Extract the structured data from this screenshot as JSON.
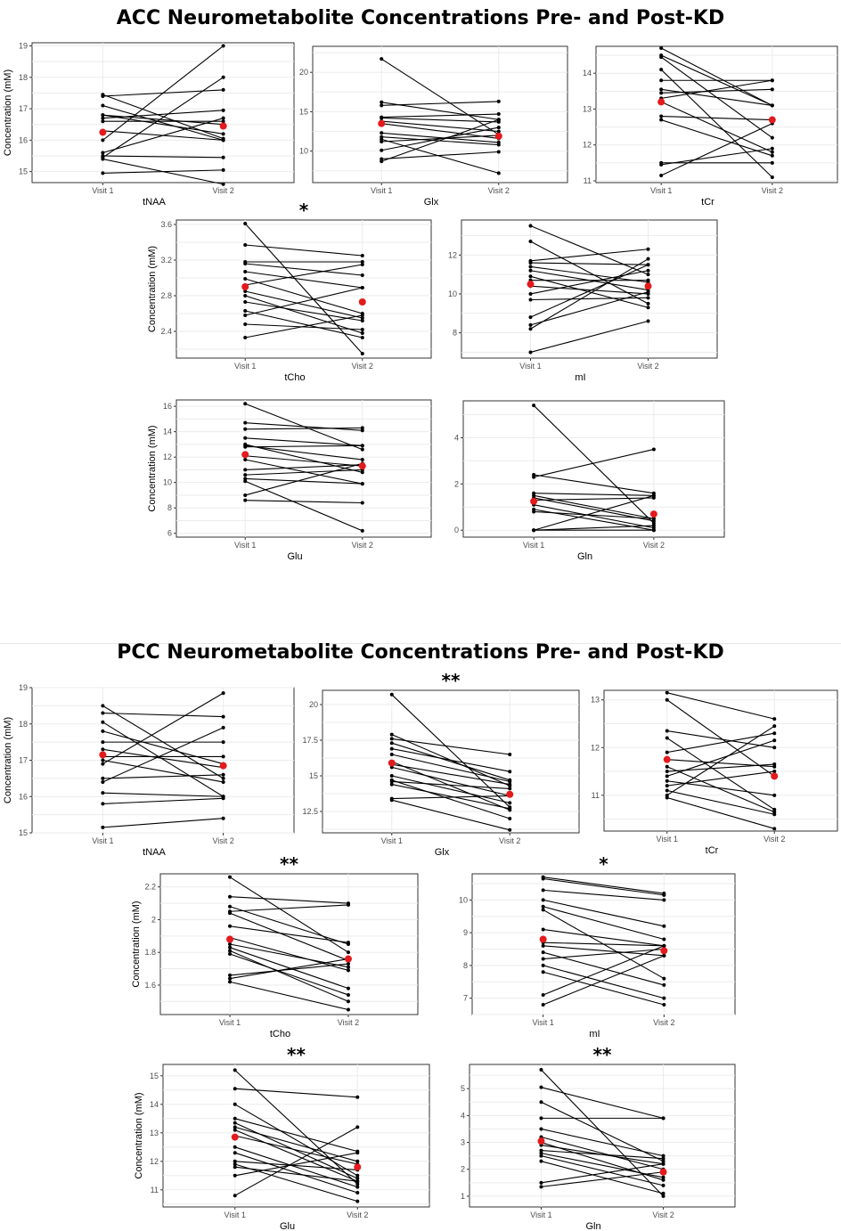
{
  "sections": [
    {
      "title": "ACC Neurometabolite Concentrations Pre- and Post-KD"
    },
    {
      "title": "PCC Neurometabolite Concentrations Pre- and Post-KD"
    }
  ],
  "colors": {
    "subject": "#000000",
    "mean": "#e41a1c",
    "grid": "#ebebeb",
    "frame": "#333333"
  },
  "chart_data": [
    {
      "type": "line",
      "region": "ACC",
      "metabolite": "tNAA",
      "xlabel": "tNAA",
      "ylabel": "Concentration (mM)",
      "significance": "",
      "categories": [
        "Visit 1",
        "Visit 2"
      ],
      "ylim": [
        14.65,
        19.1
      ],
      "yticks": [
        15,
        16,
        17,
        18,
        19
      ],
      "pairs": [
        [
          17.45,
          16.05
        ],
        [
          17.4,
          17.6
        ],
        [
          17.1,
          16.0
        ],
        [
          16.8,
          16.5
        ],
        [
          16.8,
          16.2
        ],
        [
          16.7,
          16.95
        ],
        [
          16.6,
          16.6
        ],
        [
          16.3,
          16.0
        ],
        [
          16.0,
          19.0
        ],
        [
          15.6,
          16.7
        ],
        [
          15.5,
          15.45
        ],
        [
          15.4,
          14.6
        ],
        [
          15.45,
          18.0
        ],
        [
          14.95,
          15.05
        ]
      ],
      "mean": [
        16.25,
        16.45
      ]
    },
    {
      "type": "line",
      "region": "ACC",
      "metabolite": "Glx",
      "xlabel": "Glx",
      "ylabel": "",
      "significance": "",
      "categories": [
        "Visit 1",
        "Visit 2"
      ],
      "ylim": [
        6.0,
        23.3
      ],
      "yticks": [
        10,
        15,
        20
      ],
      "pairs": [
        [
          21.7,
          12.1
        ],
        [
          16.2,
          14.0
        ],
        [
          15.8,
          16.3
        ],
        [
          14.3,
          14.7
        ],
        [
          14.2,
          13.7
        ],
        [
          13.8,
          12.5
        ],
        [
          13.5,
          11.6
        ],
        [
          12.3,
          11.1
        ],
        [
          11.8,
          10.8
        ],
        [
          11.2,
          12.0
        ],
        [
          10.1,
          13.0
        ],
        [
          9.0,
          9.9
        ],
        [
          8.7,
          14.0
        ],
        [
          11.5,
          7.2
        ]
      ],
      "mean": [
        13.5,
        11.9
      ]
    },
    {
      "type": "line",
      "region": "ACC",
      "metabolite": "tCr",
      "xlabel": "tCr",
      "ylabel": "",
      "significance": "",
      "categories": [
        "Visit 1",
        "Visit 2"
      ],
      "ylim": [
        10.95,
        14.75
      ],
      "yticks": [
        11,
        12,
        13,
        14
      ],
      "pairs": [
        [
          14.7,
          13.1
        ],
        [
          14.5,
          13.1
        ],
        [
          14.45,
          12.2
        ],
        [
          14.1,
          11.1
        ],
        [
          13.8,
          13.8
        ],
        [
          13.55,
          13.1
        ],
        [
          13.45,
          13.55
        ],
        [
          13.3,
          13.8
        ],
        [
          13.2,
          11.8
        ],
        [
          12.8,
          12.7
        ],
        [
          12.7,
          11.7
        ],
        [
          11.5,
          11.5
        ],
        [
          11.45,
          11.9
        ],
        [
          11.15,
          12.6
        ]
      ],
      "mean": [
        13.2,
        12.7
      ]
    },
    {
      "type": "line",
      "region": "ACC",
      "metabolite": "tCho",
      "xlabel": "tCho",
      "ylabel": "Concentration (mM)",
      "significance": "*",
      "categories": [
        "Visit 1",
        "Visit 2"
      ],
      "ylim": [
        2.1,
        3.65
      ],
      "yticks": [
        2.4,
        2.8,
        3.2,
        3.6
      ],
      "pairs": [
        [
          3.61,
          2.15
        ],
        [
          3.37,
          3.25
        ],
        [
          3.18,
          3.18
        ],
        [
          3.16,
          3.03
        ],
        [
          3.07,
          2.89
        ],
        [
          2.99,
          2.6
        ],
        [
          2.92,
          3.15
        ],
        [
          2.85,
          2.55
        ],
        [
          2.8,
          2.38
        ],
        [
          2.73,
          2.52
        ],
        [
          2.63,
          2.33
        ],
        [
          2.58,
          2.89
        ],
        [
          2.48,
          2.42
        ],
        [
          2.33,
          2.58
        ]
      ],
      "mean": [
        2.9,
        2.73
      ]
    },
    {
      "type": "line",
      "region": "ACC",
      "metabolite": "mI",
      "xlabel": "mI",
      "ylabel": "",
      "significance": "",
      "categories": [
        "Visit 1",
        "Visit 2"
      ],
      "ylim": [
        6.7,
        13.8
      ],
      "yticks": [
        8,
        10,
        12
      ],
      "pairs": [
        [
          13.5,
          11.0
        ],
        [
          12.7,
          9.5
        ],
        [
          11.7,
          12.3
        ],
        [
          11.6,
          11.5
        ],
        [
          11.4,
          10.6
        ],
        [
          11.2,
          10.2
        ],
        [
          10.9,
          9.3
        ],
        [
          10.7,
          10.7
        ],
        [
          10.4,
          10.0
        ],
        [
          10.0,
          11.2
        ],
        [
          9.7,
          9.8
        ],
        [
          8.8,
          11.5
        ],
        [
          8.4,
          10.1
        ],
        [
          8.2,
          11.8
        ],
        [
          7.0,
          8.6
        ]
      ],
      "mean": [
        10.5,
        10.4
      ]
    },
    {
      "type": "line",
      "region": "ACC",
      "metabolite": "Glu",
      "xlabel": "Glu",
      "ylabel": "Concentration (mM)",
      "significance": "",
      "categories": [
        "Visit 1",
        "Visit 2"
      ],
      "ylim": [
        5.7,
        16.5
      ],
      "yticks": [
        6,
        8,
        10,
        12,
        14,
        16
      ],
      "pairs": [
        [
          16.2,
          12.6
        ],
        [
          14.7,
          14.1
        ],
        [
          14.2,
          14.3
        ],
        [
          13.5,
          12.9
        ],
        [
          13.0,
          10.8
        ],
        [
          12.9,
          11.8
        ],
        [
          12.8,
          12.9
        ],
        [
          12.1,
          11.3
        ],
        [
          11.8,
          9.9
        ],
        [
          11.0,
          11.4
        ],
        [
          10.6,
          11.0
        ],
        [
          10.3,
          9.9
        ],
        [
          9.0,
          11.5
        ],
        [
          8.6,
          8.4
        ],
        [
          10.1,
          6.2
        ]
      ],
      "mean": [
        12.2,
        11.3
      ]
    },
    {
      "type": "line",
      "region": "ACC",
      "metabolite": "Gln",
      "xlabel": "Gln",
      "ylabel": "",
      "significance": "",
      "categories": [
        "Visit 1",
        "Visit 2"
      ],
      "ylim": [
        -0.3,
        5.6
      ],
      "yticks": [
        0,
        2,
        4
      ],
      "pairs": [
        [
          5.4,
          0.3
        ],
        [
          2.4,
          1.6
        ],
        [
          2.3,
          3.5
        ],
        [
          1.6,
          1.5
        ],
        [
          1.5,
          0.5
        ],
        [
          1.4,
          0.4
        ],
        [
          1.3,
          1.4
        ],
        [
          1.1,
          0.1
        ],
        [
          0.9,
          0.0
        ],
        [
          0.8,
          0.5
        ],
        [
          0.0,
          1.5
        ],
        [
          0.0,
          0.2
        ],
        [
          0.0,
          0.0
        ]
      ],
      "mean": [
        1.25,
        0.7
      ]
    },
    {
      "type": "line",
      "region": "PCC",
      "metabolite": "tNAA",
      "xlabel": "tNAA",
      "ylabel": "Concentration (mM)",
      "significance": "",
      "categories": [
        "Visit 1",
        "Visit 2"
      ],
      "ylim": [
        15.0,
        19.0
      ],
      "yticks": [
        15,
        16,
        17,
        18,
        19
      ],
      "pairs": [
        [
          18.5,
          16.5
        ],
        [
          18.3,
          18.2
        ],
        [
          18.05,
          16.0
        ],
        [
          17.8,
          16.9
        ],
        [
          17.5,
          17.5
        ],
        [
          17.3,
          16.8
        ],
        [
          17.1,
          17.1
        ],
        [
          17.0,
          16.4
        ],
        [
          16.9,
          18.85
        ],
        [
          16.5,
          16.6
        ],
        [
          16.4,
          17.9
        ],
        [
          16.1,
          16.0
        ],
        [
          15.8,
          15.95
        ],
        [
          15.15,
          15.4
        ]
      ],
      "mean": [
        17.15,
        16.85
      ]
    },
    {
      "type": "line",
      "region": "PCC",
      "metabolite": "Glx",
      "xlabel": "Glx",
      "ylabel": "",
      "significance": "**",
      "categories": [
        "Visit 1",
        "Visit 2"
      ],
      "ylim": [
        11.0,
        21.0
      ],
      "yticks": [
        12.5,
        15.0,
        17.5,
        20.0
      ],
      "pairs": [
        [
          20.7,
          12.8
        ],
        [
          17.9,
          14.3
        ],
        [
          17.6,
          16.5
        ],
        [
          17.3,
          14.7
        ],
        [
          16.9,
          15.3
        ],
        [
          16.5,
          14.6
        ],
        [
          16.0,
          12.6
        ],
        [
          15.8,
          14.4
        ],
        [
          15.6,
          13.6
        ],
        [
          15.0,
          13.1
        ],
        [
          14.7,
          12.0
        ],
        [
          14.6,
          14.1
        ],
        [
          14.4,
          12.7
        ],
        [
          13.4,
          13.6
        ],
        [
          13.3,
          11.2
        ]
      ],
      "mean": [
        15.9,
        13.7
      ]
    },
    {
      "type": "line",
      "region": "PCC",
      "metabolite": "tCr",
      "xlabel": "tCr",
      "ylabel": "",
      "significance": "",
      "categories": [
        "Visit 1",
        "Visit 2"
      ],
      "ylim": [
        10.25,
        13.2
      ],
      "yticks": [
        11,
        12,
        13
      ],
      "pairs": [
        [
          13.15,
          12.6
        ],
        [
          13.0,
          11.4
        ],
        [
          12.35,
          12.0
        ],
        [
          12.2,
          10.7
        ],
        [
          11.9,
          12.3
        ],
        [
          11.75,
          11.6
        ],
        [
          11.6,
          10.65
        ],
        [
          11.5,
          11.65
        ],
        [
          11.4,
          12.15
        ],
        [
          11.3,
          11.0
        ],
        [
          11.2,
          11.5
        ],
        [
          11.1,
          10.6
        ],
        [
          11.0,
          12.45
        ],
        [
          10.95,
          10.3
        ]
      ],
      "mean": [
        11.75,
        11.4
      ]
    },
    {
      "type": "line",
      "region": "PCC",
      "metabolite": "tCho",
      "xlabel": "tCho",
      "ylabel": "Concentration (mM)",
      "significance": "**",
      "categories": [
        "Visit 1",
        "Visit 2"
      ],
      "ylim": [
        1.42,
        2.28
      ],
      "yticks": [
        1.6,
        1.8,
        2.0,
        2.2
      ],
      "pairs": [
        [
          2.26,
          1.8
        ],
        [
          2.14,
          2.1
        ],
        [
          2.08,
          1.85
        ],
        [
          2.05,
          2.09
        ],
        [
          2.04,
          1.75
        ],
        [
          1.96,
          1.86
        ],
        [
          1.89,
          1.69
        ],
        [
          1.85,
          1.71
        ],
        [
          1.83,
          1.58
        ],
        [
          1.81,
          1.5
        ],
        [
          1.79,
          1.54
        ],
        [
          1.66,
          1.73
        ],
        [
          1.64,
          1.76
        ],
        [
          1.62,
          1.45
        ]
      ],
      "mean": [
        1.88,
        1.76
      ]
    },
    {
      "type": "line",
      "region": "PCC",
      "metabolite": "mI",
      "xlabel": "mI",
      "ylabel": "",
      "significance": "*",
      "categories": [
        "Visit 1",
        "Visit 2"
      ],
      "ylim": [
        6.5,
        10.8
      ],
      "yticks": [
        7,
        8,
        9,
        10
      ],
      "pairs": [
        [
          10.7,
          10.2
        ],
        [
          10.65,
          10.15
        ],
        [
          10.3,
          10.0
        ],
        [
          10.0,
          9.2
        ],
        [
          9.8,
          8.8
        ],
        [
          9.7,
          7.6
        ],
        [
          9.1,
          8.6
        ],
        [
          8.7,
          8.6
        ],
        [
          8.6,
          8.3
        ],
        [
          8.4,
          7.4
        ],
        [
          8.2,
          8.5
        ],
        [
          8.0,
          7.0
        ],
        [
          7.8,
          6.8
        ],
        [
          7.1,
          8.6
        ],
        [
          6.8,
          8.3
        ]
      ],
      "mean": [
        8.8,
        8.45
      ]
    },
    {
      "type": "line",
      "region": "PCC",
      "metabolite": "Glu",
      "xlabel": "Glu",
      "ylabel": "Concentration (mM)",
      "significance": "**",
      "categories": [
        "Visit 1",
        "Visit 2"
      ],
      "ylim": [
        10.4,
        15.4
      ],
      "yticks": [
        11,
        12,
        13,
        14,
        15
      ],
      "pairs": [
        [
          15.2,
          11.2
        ],
        [
          14.55,
          14.25
        ],
        [
          14.0,
          11.5
        ],
        [
          13.5,
          12.35
        ],
        [
          13.35,
          11.4
        ],
        [
          13.2,
          12.0
        ],
        [
          13.1,
          11.3
        ],
        [
          12.9,
          11.9
        ],
        [
          12.5,
          11.1
        ],
        [
          12.3,
          10.9
        ],
        [
          12.0,
          11.7
        ],
        [
          11.8,
          11.3
        ],
        [
          11.5,
          12.3
        ],
        [
          11.9,
          10.6
        ],
        [
          10.8,
          13.2
        ]
      ],
      "mean": [
        12.85,
        11.8
      ]
    },
    {
      "type": "line",
      "region": "PCC",
      "metabolite": "Gln",
      "xlabel": "Gln",
      "ylabel": "",
      "significance": "**",
      "categories": [
        "Visit 1",
        "Visit 2"
      ],
      "ylim": [
        0.6,
        5.9
      ],
      "yticks": [
        1,
        2,
        3,
        4,
        5
      ],
      "pairs": [
        [
          5.7,
          1.0
        ],
        [
          5.05,
          3.9
        ],
        [
          4.5,
          2.3
        ],
        [
          3.9,
          3.9
        ],
        [
          3.5,
          2.5
        ],
        [
          3.2,
          2.0
        ],
        [
          3.0,
          1.6
        ],
        [
          2.9,
          2.2
        ],
        [
          2.7,
          2.4
        ],
        [
          2.6,
          1.7
        ],
        [
          2.5,
          1.4
        ],
        [
          2.3,
          1.1
        ],
        [
          1.5,
          2.2
        ],
        [
          1.35,
          1.9
        ]
      ],
      "mean": [
        3.05,
        1.9
      ]
    }
  ]
}
